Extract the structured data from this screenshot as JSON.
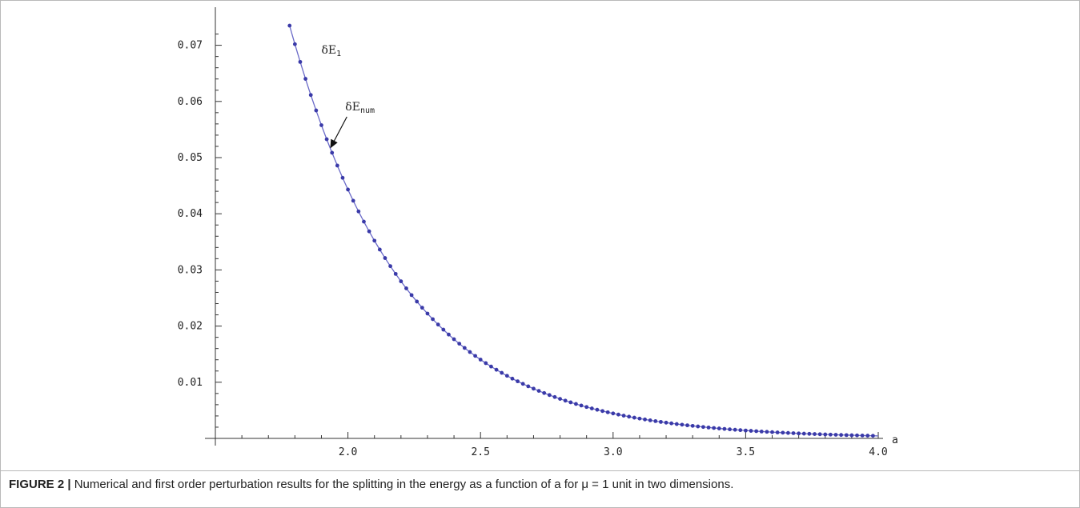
{
  "chart_data": {
    "type": "line",
    "title": "",
    "xlabel": "a",
    "ylabel": "",
    "xlim": [
      1.5,
      4.0
    ],
    "ylim": [
      0.0,
      0.074
    ],
    "x_ticks": [
      1.6,
      1.7,
      1.8,
      1.9,
      2.0,
      2.1,
      2.2,
      2.3,
      2.4,
      2.5,
      2.6,
      2.7,
      2.8,
      2.9,
      3.0,
      3.1,
      3.2,
      3.3,
      3.4,
      3.5,
      3.6,
      3.7,
      3.8,
      3.9,
      4.0
    ],
    "x_tick_labels": [
      {
        "value": 2.0,
        "label": "2.0"
      },
      {
        "value": 2.5,
        "label": "2.5"
      },
      {
        "value": 3.0,
        "label": "3.0"
      },
      {
        "value": 3.5,
        "label": "3.5"
      },
      {
        "value": 4.0,
        "label": "4.0"
      }
    ],
    "y_ticks": [
      0.002,
      0.004,
      0.006,
      0.008,
      0.01,
      0.012,
      0.014,
      0.016,
      0.018,
      0.02,
      0.022,
      0.024,
      0.026,
      0.028,
      0.03,
      0.032,
      0.034,
      0.036,
      0.038,
      0.04,
      0.042,
      0.044,
      0.046,
      0.048,
      0.05,
      0.052,
      0.054,
      0.056,
      0.058,
      0.06,
      0.062,
      0.064,
      0.066,
      0.068,
      0.07,
      0.072
    ],
    "y_tick_labels": [
      {
        "value": 0.01,
        "label": "0.01"
      },
      {
        "value": 0.02,
        "label": "0.02"
      },
      {
        "value": 0.03,
        "label": "0.03"
      },
      {
        "value": 0.04,
        "label": "0.04"
      },
      {
        "value": 0.05,
        "label": "0.05"
      },
      {
        "value": 0.06,
        "label": "0.06"
      },
      {
        "value": 0.07,
        "label": "0.07"
      }
    ],
    "series": [
      {
        "name": "δE1",
        "style": "line",
        "color": "#6a6ac8",
        "model": {
          "form": "A*exp(-k*(x-x0))",
          "A": 0.0735,
          "k": 2.3,
          "x0": 1.78
        },
        "x_range": [
          1.78,
          4.0
        ]
      },
      {
        "name": "δEnum",
        "style": "markers",
        "color": "#3a3aa8",
        "model": {
          "form": "A*exp(-k*(x-x0))",
          "A": 0.0735,
          "k": 2.3,
          "x0": 1.78
        },
        "x_start": 1.78,
        "x_end": 3.98,
        "x_step": 0.02
      }
    ],
    "annotations": [
      {
        "main": "δE",
        "sub": "1",
        "near_x": 1.9,
        "near_y": 0.0685
      },
      {
        "main": "δE",
        "sub": "num",
        "near_x": 1.99,
        "near_y": 0.0584,
        "arrow_to_x": 1.935,
        "arrow_to_y": 0.0518
      }
    ],
    "grid": false,
    "legend": "none"
  },
  "caption": {
    "label": "FIGURE 2 |",
    "text": "Numerical and first order perturbation results for the splitting in the energy as a function of a for μ = 1 unit in two dimensions."
  }
}
